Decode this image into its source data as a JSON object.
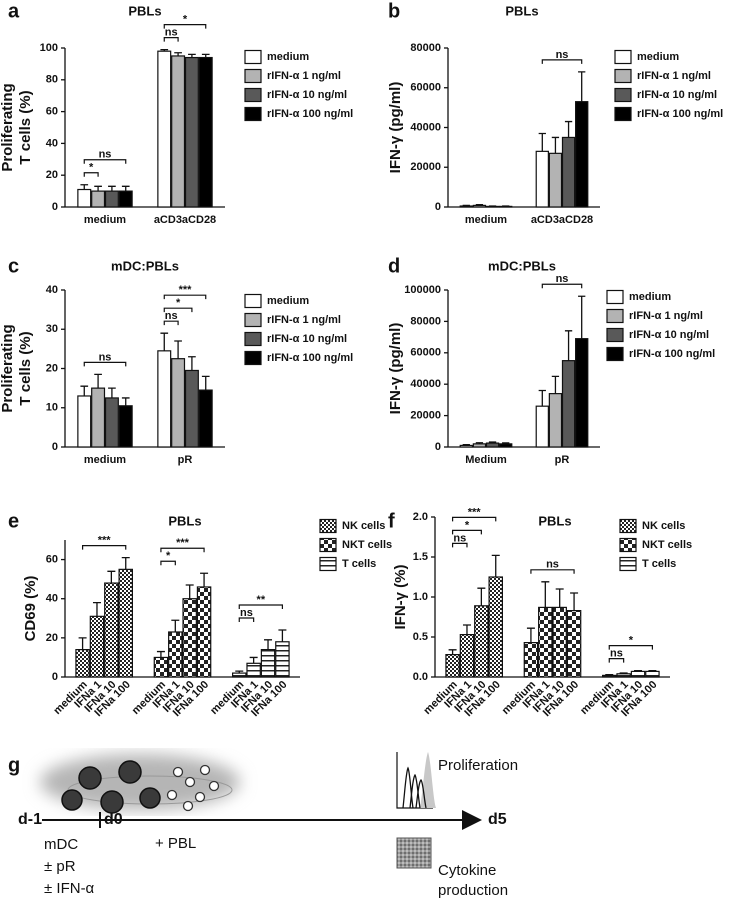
{
  "chart_data": [
    {
      "panel": "a",
      "type": "bar",
      "title": "PBLs",
      "y_label": [
        "Proliferating",
        "T cells (%)"
      ],
      "categories": [
        "medium",
        "aCD3aCD28"
      ],
      "series": [
        {
          "name": "medium",
          "color": "#ffffff",
          "values": [
            11,
            98
          ],
          "errors": [
            3,
            1
          ]
        },
        {
          "name": "rIFN-α 1 ng/ml",
          "color": "#b3b3b3",
          "values": [
            10,
            95
          ],
          "errors": [
            3,
            2
          ]
        },
        {
          "name": "rIFN-α 10 ng/ml",
          "color": "#595959",
          "values": [
            10,
            94
          ],
          "errors": [
            3,
            2
          ]
        },
        {
          "name": "rIFN-α 100 ng/ml",
          "color": "#000000",
          "values": [
            10,
            94
          ],
          "errors": [
            3,
            2
          ]
        }
      ],
      "annotations": [
        {
          "text": "*",
          "group": 0,
          "from": 0,
          "to": 1
        },
        {
          "text": "ns",
          "group": 0,
          "from": 0,
          "to": 3
        },
        {
          "text": "ns",
          "group": 1,
          "from": 0,
          "to": 1
        },
        {
          "text": "*",
          "group": 1,
          "from": 0,
          "to": 3
        }
      ],
      "ylim": [
        0,
        100
      ],
      "yticks": [
        0,
        20,
        40,
        60,
        80,
        100
      ]
    },
    {
      "panel": "b",
      "type": "bar",
      "title": "PBLs",
      "y_label": "IFN-γ (pg/ml)",
      "categories": [
        "medium",
        "aCD3aCD28"
      ],
      "series": [
        {
          "name": "medium",
          "color": "#ffffff",
          "values": [
            500,
            28000
          ],
          "errors": [
            300,
            9000
          ]
        },
        {
          "name": "rIFN-α 1 ng/ml",
          "color": "#b3b3b3",
          "values": [
            800,
            27000
          ],
          "errors": [
            400,
            8000
          ]
        },
        {
          "name": "rIFN-α 10 ng/ml",
          "color": "#595959",
          "values": [
            300,
            35000
          ],
          "errors": [
            200,
            8000
          ]
        },
        {
          "name": "rIFN-α 100 ng/ml",
          "color": "#000000",
          "values": [
            300,
            53000
          ],
          "errors": [
            200,
            15000
          ]
        }
      ],
      "annotations": [
        {
          "text": "ns",
          "group": 1,
          "from": 0,
          "to": 3
        }
      ],
      "ylim": [
        0,
        80000
      ],
      "yticks": [
        0,
        20000,
        40000,
        60000,
        80000
      ]
    },
    {
      "panel": "c",
      "type": "bar",
      "title": "mDC:PBLs",
      "y_label": [
        "Proliferating",
        "T cells (%)"
      ],
      "categories": [
        "medium",
        "pR"
      ],
      "series": [
        {
          "name": "medium",
          "color": "#ffffff",
          "values": [
            13,
            24.5
          ],
          "errors": [
            2.5,
            4.5
          ]
        },
        {
          "name": "rIFN-α 1 ng/ml",
          "color": "#b3b3b3",
          "values": [
            15,
            22.5
          ],
          "errors": [
            3.5,
            4.5
          ]
        },
        {
          "name": "rIFN-α 10 ng/ml",
          "color": "#595959",
          "values": [
            12.5,
            19.5
          ],
          "errors": [
            2.5,
            3.5
          ]
        },
        {
          "name": "rIFN-α 100 ng/ml",
          "color": "#000000",
          "values": [
            10.5,
            14.5
          ],
          "errors": [
            2,
            3.5
          ]
        }
      ],
      "annotations": [
        {
          "text": "ns",
          "group": 0,
          "from": 0,
          "to": 3
        },
        {
          "text": "ns",
          "group": 1,
          "from": 0,
          "to": 1
        },
        {
          "text": "*",
          "group": 1,
          "from": 0,
          "to": 2
        },
        {
          "text": "***",
          "group": 1,
          "from": 0,
          "to": 3
        }
      ],
      "ylim": [
        0,
        40
      ],
      "yticks": [
        0,
        10,
        20,
        30,
        40
      ]
    },
    {
      "panel": "d",
      "type": "bar",
      "title": "mDC:PBLs",
      "y_label": "IFN-γ (pg/ml)",
      "categories": [
        "Medium",
        "pR"
      ],
      "series": [
        {
          "name": "medium",
          "color": "#ffffff",
          "values": [
            1000,
            26000
          ],
          "errors": [
            500,
            10000
          ]
        },
        {
          "name": "rIFN-α 1 ng/ml",
          "color": "#b3b3b3",
          "values": [
            2000,
            34000
          ],
          "errors": [
            700,
            11000
          ]
        },
        {
          "name": "rIFN-α 10 ng/ml",
          "color": "#595959",
          "values": [
            2500,
            55000
          ],
          "errors": [
            700,
            19000
          ]
        },
        {
          "name": "rIFN-α 100 ng/ml",
          "color": "#000000",
          "values": [
            2000,
            69000
          ],
          "errors": [
            600,
            27000
          ]
        }
      ],
      "annotations": [
        {
          "text": "ns",
          "group": 1,
          "from": 0,
          "to": 3
        }
      ],
      "ylim": [
        0,
        100000
      ],
      "yticks": [
        0,
        20000,
        40000,
        60000,
        80000,
        100000
      ]
    },
    {
      "panel": "e",
      "type": "bar",
      "title": "PBLs",
      "y_label": "CD69 (%)",
      "categories": [
        "medium",
        "IFNa 1",
        "IFNa 10",
        "IFNa 100"
      ],
      "series": [
        {
          "name": "NK cells",
          "pattern": "checker",
          "values": [
            14,
            31,
            48,
            55
          ],
          "errors": [
            6,
            7,
            6,
            6
          ]
        },
        {
          "name": "NKT cells",
          "pattern": "grid",
          "values": [
            10,
            23,
            40,
            46
          ],
          "errors": [
            3,
            6,
            7,
            7
          ]
        },
        {
          "name": "T cells",
          "pattern": "stripes",
          "values": [
            2,
            7,
            14,
            18
          ],
          "errors": [
            1,
            3,
            5,
            6
          ]
        }
      ],
      "annotations": [
        {
          "text": "***",
          "group": 0,
          "from": 0,
          "to": 3
        },
        {
          "text": "*",
          "group": 1,
          "from": 0,
          "to": 1
        },
        {
          "text": "***",
          "group": 1,
          "from": 0,
          "to": 3
        },
        {
          "text": "ns",
          "group": 2,
          "from": 0,
          "to": 1
        },
        {
          "text": "**",
          "group": 2,
          "from": 0,
          "to": 3
        }
      ],
      "ylim": [
        0,
        70
      ],
      "yticks": [
        0,
        20,
        40,
        60
      ]
    },
    {
      "panel": "f",
      "type": "bar",
      "title": "PBLs",
      "y_label": "IFN-γ (%)",
      "categories": [
        "medium",
        "IFNa 1",
        "IFNa 10",
        "IFNa 100"
      ],
      "series": [
        {
          "name": "NK cells",
          "pattern": "checker",
          "values": [
            0.28,
            0.53,
            0.89,
            1.25
          ],
          "errors": [
            0.06,
            0.12,
            0.22,
            0.27
          ]
        },
        {
          "name": "NKT cells",
          "pattern": "grid",
          "values": [
            0.43,
            0.87,
            0.87,
            0.83
          ],
          "errors": [
            0.18,
            0.32,
            0.23,
            0.22
          ]
        },
        {
          "name": "T cells",
          "pattern": "stripes",
          "values": [
            0.02,
            0.04,
            0.07,
            0.07
          ],
          "errors": [
            0.01,
            0.01,
            0.01,
            0.01
          ]
        }
      ],
      "annotations": [
        {
          "text": "ns",
          "group": 0,
          "from": 0,
          "to": 1
        },
        {
          "text": "*",
          "group": 0,
          "from": 0,
          "to": 2
        },
        {
          "text": "***",
          "group": 0,
          "from": 0,
          "to": 3
        },
        {
          "text": "ns",
          "group": 1,
          "from": 0,
          "to": 3
        },
        {
          "text": "ns",
          "group": 2,
          "from": 0,
          "to": 1
        },
        {
          "text": "*",
          "group": 2,
          "from": 0,
          "to": 3
        }
      ],
      "ylim": [
        0,
        2
      ],
      "yticks": [
        {
          "value": 0,
          "label": "0.0"
        },
        0.5,
        {
          "value": 1,
          "label": "1.0"
        },
        1.5,
        {
          "value": 2,
          "label": "2.0"
        }
      ]
    }
  ],
  "diagram": {
    "panel": "g",
    "start": "d-1",
    "day0": "d0",
    "end": "d5",
    "step": "+ PBL",
    "conditions": [
      "mDC",
      "± pR",
      "± IFN-α"
    ],
    "readout_1": "Proliferation",
    "readout_2": [
      "Cytokine",
      "production"
    ]
  }
}
